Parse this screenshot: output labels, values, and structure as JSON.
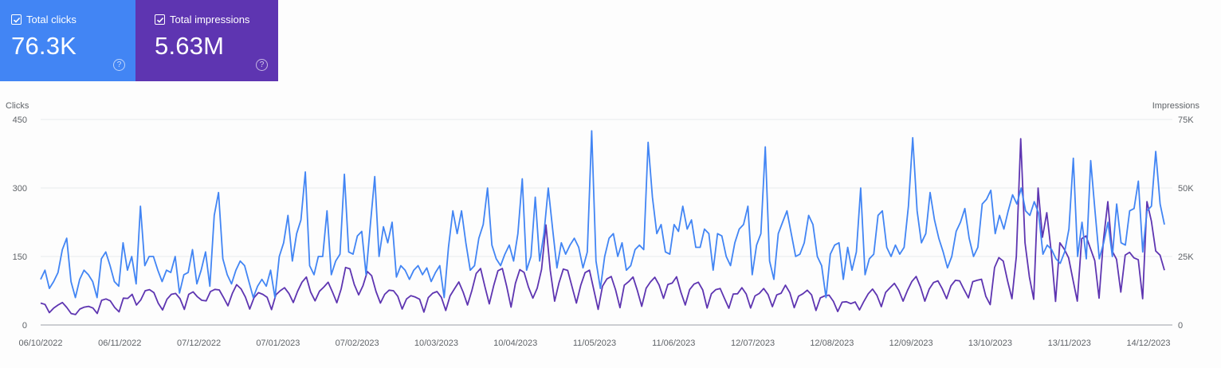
{
  "cards": {
    "clicks": {
      "label": "Total clicks",
      "value": "76.3K",
      "color": "#4285f4"
    },
    "impressions": {
      "label": "Total impressions",
      "value": "5.63M",
      "color": "#5e35b1"
    }
  },
  "chart_data": {
    "type": "line",
    "xlabel": "",
    "ylabel": "Clicks",
    "y2label": "Impressions",
    "ylim": [
      0,
      450
    ],
    "y2lim": [
      0,
      75000
    ],
    "yticks": [
      "0",
      "150",
      "300",
      "450"
    ],
    "y2ticks": [
      "0",
      "25K",
      "50K",
      "75K"
    ],
    "xticks": [
      "06/10/2022",
      "06/11/2022",
      "07/12/2022",
      "07/01/2023",
      "07/02/2023",
      "10/03/2023",
      "10/04/2023",
      "11/05/2023",
      "11/06/2023",
      "12/07/2023",
      "12/08/2023",
      "12/09/2023",
      "13/10/2023",
      "13/11/2023",
      "14/12/2023"
    ],
    "series": [
      {
        "name": "Clicks",
        "axis": "left",
        "color": "#4285f4",
        "values": [
          100,
          120,
          80,
          95,
          115,
          165,
          190,
          95,
          60,
          100,
          120,
          110,
          95,
          60,
          145,
          160,
          130,
          95,
          85,
          180,
          120,
          150,
          90,
          260,
          130,
          150,
          150,
          120,
          95,
          120,
          115,
          150,
          70,
          110,
          115,
          165,
          90,
          120,
          160,
          85,
          240,
          290,
          145,
          110,
          90,
          120,
          140,
          130,
          95,
          60,
          85,
          100,
          85,
          120,
          60,
          150,
          180,
          240,
          140,
          200,
          230,
          335,
          130,
          110,
          150,
          150,
          250,
          110,
          140,
          155,
          330,
          160,
          155,
          195,
          205,
          110,
          220,
          325,
          150,
          215,
          180,
          225,
          105,
          130,
          120,
          100,
          120,
          130,
          110,
          125,
          95,
          115,
          130,
          60,
          170,
          250,
          200,
          250,
          180,
          120,
          130,
          190,
          220,
          300,
          175,
          145,
          130,
          155,
          175,
          140,
          200,
          320,
          120,
          150,
          280,
          140,
          200,
          300,
          210,
          125,
          180,
          155,
          175,
          190,
          170,
          125,
          160,
          425,
          140,
          80,
          150,
          190,
          200,
          150,
          180,
          120,
          130,
          165,
          175,
          165,
          400,
          280,
          200,
          220,
          160,
          155,
          220,
          205,
          260,
          210,
          230,
          170,
          170,
          210,
          200,
          120,
          200,
          195,
          150,
          130,
          180,
          210,
          220,
          260,
          110,
          175,
          200,
          390,
          140,
          100,
          200,
          225,
          250,
          200,
          150,
          155,
          180,
          240,
          220,
          150,
          130,
          60,
          155,
          175,
          180,
          100,
          170,
          120,
          160,
          300,
          110,
          145,
          155,
          240,
          250,
          170,
          150,
          175,
          155,
          170,
          260,
          410,
          250,
          180,
          200,
          290,
          230,
          190,
          160,
          125,
          150,
          205,
          225,
          255,
          190,
          150,
          170,
          265,
          275,
          295,
          200,
          240,
          210,
          250,
          285,
          265,
          300,
          250,
          240,
          270,
          245,
          155,
          175,
          165,
          145,
          135,
          160,
          210,
          365,
          150,
          225,
          145,
          360,
          250,
          145,
          180,
          225,
          150,
          265,
          180,
          175,
          250,
          255,
          315,
          160,
          250,
          260,
          380,
          265,
          220
        ]
      },
      {
        "name": "Impressions",
        "axis": "right",
        "color": "#5e35b1",
        "values": [
          8000,
          7500,
          4500,
          6200,
          7300,
          8200,
          6400,
          4200,
          3800,
          5800,
          6500,
          6800,
          6200,
          4200,
          9000,
          9500,
          8800,
          6400,
          4800,
          9800,
          9700,
          11200,
          7300,
          9200,
          12500,
          12900,
          11800,
          7900,
          5500,
          9400,
          11200,
          11500,
          9600,
          5700,
          11200,
          12100,
          10300,
          9000,
          8800,
          12200,
          13000,
          12800,
          10000,
          7000,
          11500,
          14700,
          13200,
          10200,
          5800,
          10000,
          11800,
          11200,
          10100,
          5600,
          11000,
          12500,
          13600,
          11500,
          8200,
          12300,
          15600,
          17500,
          12000,
          8800,
          12300,
          13800,
          15600,
          12000,
          8100,
          13200,
          21000,
          20500,
          14800,
          11000,
          14300,
          19500,
          18000,
          12200,
          8000,
          11200,
          12700,
          12500,
          10500,
          5800,
          9500,
          10700,
          10200,
          9400,
          4700,
          10000,
          11600,
          12200,
          10100,
          5300,
          10600,
          13200,
          15700,
          12000,
          7300,
          12500,
          18800,
          20600,
          14000,
          7700,
          14300,
          19800,
          20600,
          14000,
          6500,
          15200,
          20200,
          19200,
          13800,
          9800,
          13400,
          20300,
          36500,
          20000,
          8700,
          15300,
          20400,
          19900,
          14000,
          8000,
          14500,
          19100,
          20000,
          12800,
          5700,
          14200,
          16800,
          17700,
          12800,
          6300,
          14500,
          15800,
          17500,
          12600,
          6800,
          13400,
          15700,
          17400,
          14600,
          9700,
          14800,
          15300,
          17600,
          11900,
          7300,
          12900,
          14900,
          15600,
          12800,
          6200,
          11400,
          12900,
          13300,
          9700,
          6100,
          11300,
          11400,
          13600,
          11300,
          6200,
          10600,
          11500,
          13300,
          11100,
          6700,
          11000,
          11600,
          14500,
          11800,
          6300,
          10500,
          11400,
          12700,
          11000,
          5300,
          9900,
          10600,
          10900,
          8600,
          4900,
          8300,
          8500,
          7800,
          8400,
          5500,
          8600,
          11400,
          13100,
          10800,
          6700,
          11900,
          13600,
          15200,
          12700,
          8700,
          12600,
          15800,
          17700,
          13800,
          8700,
          13100,
          15500,
          16100,
          13200,
          9600,
          14300,
          16300,
          16100,
          12900,
          9900,
          15800,
          16300,
          16700,
          10500,
          7400,
          21000,
          24600,
          23300,
          16000,
          9600,
          25000,
          68000,
          30000,
          17500,
          9400,
          50000,
          32000,
          41000,
          27000,
          8600,
          30000,
          27700,
          24500,
          16600,
          8700,
          31500,
          32500,
          28000,
          23500,
          9800,
          31000,
          45000,
          27000,
          24000,
          12000,
          25500,
          26500,
          24500,
          23800,
          9600,
          45000,
          38000,
          27000,
          25500,
          20000
        ]
      }
    ]
  }
}
